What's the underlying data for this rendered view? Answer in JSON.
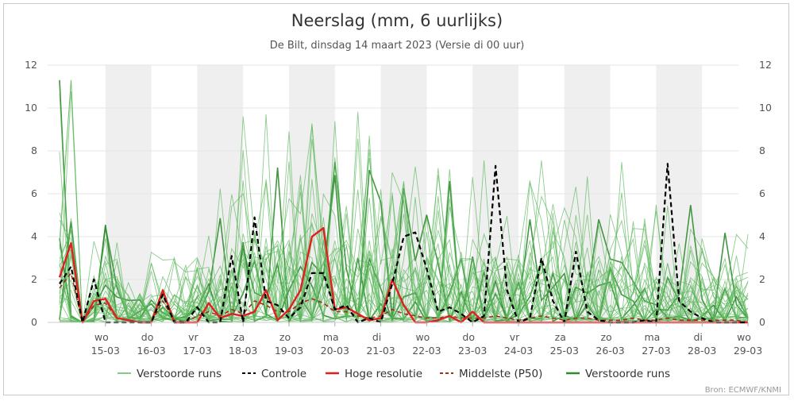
{
  "chart_data": {
    "type": "line",
    "title": "Neerslag (mm, 6 uurlijks)",
    "subtitle": "De Bilt, dinsdag 14 maart 2023 (Versie di 00 uur)",
    "credit": "Bron: ECMWF/KNMI",
    "ylim": [
      0,
      12
    ],
    "yticks": [
      0,
      2,
      4,
      6,
      8,
      10,
      12
    ],
    "xlim": [
      0,
      15
    ],
    "day_ticks": [
      {
        "x": 1,
        "day": "wo",
        "date": "15-03"
      },
      {
        "x": 2,
        "day": "do",
        "date": "16-03"
      },
      {
        "x": 3,
        "day": "vr",
        "date": "17-03"
      },
      {
        "x": 4,
        "day": "za",
        "date": "18-03"
      },
      {
        "x": 5,
        "day": "zo",
        "date": "19-03"
      },
      {
        "x": 6,
        "day": "ma",
        "date": "20-03"
      },
      {
        "x": 7,
        "day": "di",
        "date": "21-03"
      },
      {
        "x": 8,
        "day": "wo",
        "date": "22-03"
      },
      {
        "x": 9,
        "day": "do",
        "date": "23-03"
      },
      {
        "x": 10,
        "day": "vr",
        "date": "24-03"
      },
      {
        "x": 11,
        "day": "za",
        "date": "25-03"
      },
      {
        "x": 12,
        "day": "zo",
        "date": "26-03"
      },
      {
        "x": 13,
        "day": "ma",
        "date": "27-03"
      },
      {
        "x": 14,
        "day": "di",
        "date": "28-03"
      },
      {
        "x": 15,
        "day": "wo",
        "date": "29-03"
      }
    ],
    "weekend_bands": [
      [
        1,
        2
      ],
      [
        3,
        4
      ],
      [
        5,
        6
      ],
      [
        7,
        8
      ],
      [
        9,
        10
      ],
      [
        11,
        12
      ],
      [
        13,
        14
      ],
      [
        15,
        15.05
      ]
    ],
    "legend": [
      {
        "label": "Verstoorde runs",
        "style": "thin-green"
      },
      {
        "label": "Controle",
        "style": "dashed-black"
      },
      {
        "label": "Hoge resolutie",
        "style": "solid-red"
      },
      {
        "label": "Middelste (P50)",
        "style": "dashed-darkred"
      },
      {
        "label": "Verstoorde runs",
        "style": "thick-green"
      }
    ],
    "colors": {
      "ensemble": "#5cb85c",
      "ensemble_thick": "#2e8b2e",
      "control": "#000000",
      "hires": "#e02020",
      "median": "#a0301c",
      "band": "#efefef",
      "grid": "#e6e6e6"
    },
    "series": [
      {
        "name": "Controle",
        "x": [
          0,
          0.25,
          0.5,
          0.75,
          1,
          1.25,
          1.5,
          1.75,
          2,
          2.25,
          2.5,
          2.75,
          3,
          3.25,
          3.5,
          3.75,
          4,
          4.25,
          4.5,
          4.75,
          5,
          5.25,
          5.5,
          5.75,
          6,
          6.25,
          6.5,
          6.75,
          7,
          7.25,
          7.5,
          7.75,
          8,
          8.25,
          8.5,
          8.75,
          9,
          9.25,
          9.5,
          9.75,
          10,
          10.25,
          10.5,
          10.75,
          11,
          11.25,
          11.5,
          11.75,
          12,
          12.25,
          12.5,
          12.75,
          13,
          13.25,
          13.5,
          13.75,
          14,
          14.25,
          14.5,
          14.75,
          15
        ],
        "values": [
          1.8,
          2.6,
          0.0,
          2.0,
          0.0,
          0.0,
          0.0,
          0.0,
          0.0,
          1.3,
          0.0,
          0.0,
          0.7,
          0.0,
          0.0,
          3.1,
          0.0,
          4.9,
          1.0,
          0.8,
          0.2,
          0.7,
          2.3,
          2.3,
          0.6,
          0.8,
          0.0,
          0.2,
          0.0,
          1.8,
          4.0,
          4.2,
          2.5,
          0.5,
          0.7,
          0.4,
          0.0,
          0.3,
          7.3,
          1.5,
          0.0,
          0.2,
          3.0,
          1.0,
          0.0,
          3.3,
          0.5,
          0.1,
          0.0,
          0.0,
          0.0,
          0.1,
          0.0,
          7.4,
          1.0,
          0.5,
          0.2,
          0.0,
          0.0,
          0.0,
          0.0
        ]
      },
      {
        "name": "Hoge resolutie",
        "x": [
          0,
          0.25,
          0.5,
          0.75,
          1,
          1.25,
          1.5,
          1.75,
          2,
          2.25,
          2.5,
          2.75,
          3,
          3.25,
          3.5,
          3.75,
          4,
          4.25,
          4.5,
          4.75,
          5,
          5.25,
          5.5,
          5.75,
          6,
          6.25,
          6.5,
          6.75,
          7,
          7.25,
          7.5,
          7.75,
          8,
          8.25,
          8.5,
          8.75,
          9,
          9.25,
          9.5,
          9.75,
          10,
          10.25,
          10.5,
          10.75,
          11,
          11.25,
          11.5,
          11.75,
          12,
          12.25,
          12.5,
          12.75,
          13,
          13.25,
          13.5,
          13.75,
          14,
          14.25,
          14.5,
          14.75,
          15
        ],
        "values": [
          2.1,
          3.7,
          0.0,
          1.0,
          1.1,
          0.2,
          0.1,
          0.0,
          0.0,
          1.5,
          0.0,
          0.0,
          0.0,
          0.9,
          0.2,
          0.4,
          0.3,
          0.5,
          1.5,
          0.1,
          0.6,
          1.5,
          4.0,
          4.4,
          0.6,
          0.7,
          0.4,
          0.1,
          0.2,
          2.0,
          0.8,
          0.0,
          0.0,
          0.1,
          0.3,
          0.0,
          0.5,
          0.0,
          0.0,
          0.0,
          0.0,
          0.0,
          0.0,
          0.0,
          0.0,
          0.0,
          0.0,
          0.0,
          0.0,
          0.0,
          0.0,
          0.0,
          0.0,
          0.0,
          0.0,
          0.0,
          0.0,
          0.0,
          0.0,
          0.0,
          0.0
        ]
      },
      {
        "name": "Middelste (P50)",
        "x": [
          0,
          0.25,
          0.5,
          0.75,
          1,
          1.25,
          1.5,
          1.75,
          2,
          2.25,
          2.5,
          2.75,
          3,
          3.25,
          3.5,
          3.75,
          4,
          4.25,
          4.5,
          4.75,
          5,
          5.25,
          5.5,
          5.75,
          6,
          6.25,
          6.5,
          6.75,
          7,
          7.25,
          7.5,
          7.75,
          8,
          8.25,
          8.5,
          8.75,
          9,
          9.25,
          9.5,
          9.75,
          10,
          10.25,
          10.5,
          10.75,
          11,
          11.25,
          11.5,
          11.75,
          12,
          12.25,
          12.5,
          12.75,
          13,
          13.25,
          13.5,
          13.75,
          14,
          14.25,
          14.5,
          14.75,
          15
        ],
        "values": [
          1.6,
          2.3,
          0.0,
          0.8,
          0.9,
          0.2,
          0.1,
          0.0,
          0.0,
          1.0,
          0.1,
          0.0,
          0.3,
          0.5,
          0.3,
          0.6,
          0.4,
          1.0,
          0.8,
          0.5,
          0.5,
          0.9,
          1.1,
          0.9,
          0.5,
          0.5,
          0.3,
          0.2,
          0.3,
          0.6,
          0.4,
          0.3,
          0.2,
          0.2,
          0.3,
          0.2,
          0.2,
          0.2,
          0.3,
          0.2,
          0.1,
          0.2,
          0.3,
          0.2,
          0.1,
          0.2,
          0.2,
          0.1,
          0.1,
          0.1,
          0.2,
          0.1,
          0.1,
          0.2,
          0.1,
          0.1,
          0.1,
          0.1,
          0.1,
          0.1,
          0.0
        ]
      }
    ]
  }
}
